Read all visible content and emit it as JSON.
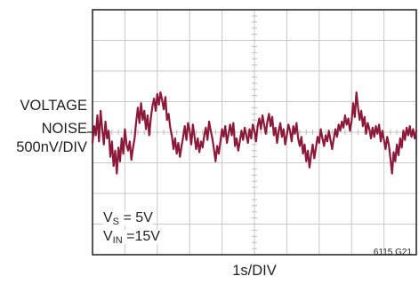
{
  "chart_data": {
    "type": "line",
    "title": "",
    "xlabel": "1s/DIV",
    "ylabel_lines": [
      "VOLTAGE",
      "NOISE",
      "500nV/DIV"
    ],
    "grid": true,
    "divisions": {
      "x": 10,
      "y": 8
    },
    "xlim": [
      0,
      10
    ],
    "ylim": [
      -4,
      4
    ],
    "x_unit": "s (1 per division)",
    "y_unit": "µV (0.5 per division), 0 = center line",
    "conditions": [
      {
        "sym": "V",
        "sub": "S",
        "rest": " = 5V"
      },
      {
        "sym": "V",
        "sub": "IN",
        "rest": " =15V"
      }
    ],
    "figure_id": "6115 G21",
    "trace_color": "#8b1a3a",
    "series": [
      {
        "x": [
          0.0,
          0.05,
          0.1,
          0.15,
          0.2,
          0.25,
          0.3,
          0.35,
          0.4,
          0.45,
          0.5,
          0.55,
          0.6,
          0.65,
          0.7,
          0.75,
          0.8,
          0.85,
          0.9,
          0.95,
          1.0,
          1.05,
          1.1,
          1.15,
          1.2,
          1.25,
          1.3,
          1.35,
          1.4,
          1.45,
          1.5,
          1.55,
          1.6,
          1.65,
          1.7,
          1.75,
          1.8,
          1.85,
          1.9,
          1.95,
          2.0,
          2.05,
          2.1,
          2.15,
          2.2,
          2.25,
          2.3,
          2.35,
          2.4,
          2.45,
          2.5,
          2.55,
          2.6,
          2.65,
          2.7,
          2.75,
          2.8,
          2.85,
          2.9,
          2.95,
          3.0,
          3.05,
          3.1,
          3.15,
          3.2,
          3.25,
          3.3,
          3.35,
          3.4,
          3.45,
          3.5,
          3.55,
          3.6,
          3.65,
          3.7,
          3.75,
          3.8,
          3.85,
          3.9,
          3.95,
          4.0,
          4.05,
          4.1,
          4.15,
          4.2,
          4.25,
          4.3,
          4.35,
          4.4,
          4.45,
          4.5,
          4.55,
          4.6,
          4.65,
          4.7,
          4.75,
          4.8,
          4.85,
          4.9,
          4.95,
          5.0,
          5.05,
          5.1,
          5.15,
          5.2,
          5.25,
          5.3,
          5.35,
          5.4,
          5.45,
          5.5,
          5.55,
          5.6,
          5.65,
          5.7,
          5.75,
          5.8,
          5.85,
          5.9,
          5.95,
          6.0,
          6.05,
          6.1,
          6.15,
          6.2,
          6.25,
          6.3,
          6.35,
          6.4,
          6.45,
          6.5,
          6.55,
          6.6,
          6.65,
          6.7,
          6.75,
          6.8,
          6.85,
          6.9,
          6.95,
          7.0,
          7.05,
          7.1,
          7.15,
          7.2,
          7.25,
          7.3,
          7.35,
          7.4,
          7.45,
          7.5,
          7.55,
          7.6,
          7.65,
          7.7,
          7.75,
          7.8,
          7.85,
          7.9,
          7.95,
          8.0,
          8.05,
          8.1,
          8.15,
          8.2,
          8.25,
          8.3,
          8.35,
          8.4,
          8.45,
          8.5,
          8.55,
          8.6,
          8.65,
          8.7,
          8.75,
          8.8,
          8.85,
          8.9,
          8.95,
          9.0,
          9.05,
          9.1,
          9.15,
          9.2,
          9.25,
          9.3,
          9.35,
          9.4,
          9.45,
          9.5,
          9.55,
          9.6,
          9.65,
          9.7,
          9.75,
          9.8,
          9.85,
          9.9,
          9.95,
          10.0
        ],
        "y": [
          -0.35,
          0.2,
          -0.1,
          0.55,
          -0.3,
          0.7,
          0.1,
          -0.4,
          0.35,
          -0.2,
          0.05,
          -0.8,
          -0.3,
          -1.1,
          -0.6,
          -1.35,
          -0.5,
          -0.95,
          -0.2,
          -0.7,
          0.1,
          -0.4,
          -0.6,
          -0.3,
          -0.9,
          -0.5,
          -0.2,
          0.35,
          0.8,
          0.3,
          0.95,
          0.4,
          0.7,
          0.1,
          0.55,
          -0.1,
          0.45,
          0.85,
          1.1,
          0.7,
          1.25,
          0.9,
          1.3,
          1.05,
          0.75,
          1.15,
          0.4,
          0.6,
          0.15,
          -0.1,
          -0.55,
          -0.2,
          -0.7,
          -0.35,
          -0.8,
          -0.45,
          -0.15,
          0.2,
          -0.25,
          0.3,
          0.05,
          -0.4,
          0.25,
          -0.15,
          -0.55,
          -0.2,
          -0.65,
          -0.3,
          -0.5,
          -0.1,
          0.15,
          -0.25,
          0.35,
          0.05,
          -0.2,
          -0.55,
          -0.95,
          -0.45,
          -0.7,
          -0.3,
          0.1,
          -0.15,
          0.2,
          -0.35,
          -0.05,
          0.25,
          -0.1,
          0.3,
          -0.45,
          -0.2,
          -0.6,
          -0.3,
          0.05,
          -0.25,
          0.15,
          -0.1,
          -0.35,
          0.1,
          -0.2,
          0.25,
          0.05,
          -0.3,
          0.2,
          0.45,
          0.1,
          0.55,
          0.25,
          -0.05,
          0.35,
          0.6,
          0.2,
          0.5,
          -0.1,
          0.15,
          -0.35,
          0.05,
          0.3,
          -0.15,
          0.1,
          -0.4,
          -0.1,
          0.25,
          0.05,
          -0.3,
          0.2,
          -0.05,
          0.3,
          -0.2,
          -0.45,
          -0.15,
          -0.7,
          -0.4,
          -0.95,
          -0.6,
          -1.15,
          -0.75,
          -0.4,
          -0.85,
          -0.5,
          -0.15,
          -0.35,
          0.1,
          -0.2,
          -0.45,
          -0.1,
          -0.3,
          0.05,
          -0.25,
          -0.55,
          -0.2,
          0.1,
          -0.15,
          0.25,
          0.05,
          0.35,
          0.15,
          0.55,
          0.25,
          0.45,
          0.05,
          0.35,
          0.95,
          0.5,
          1.3,
          0.8,
          0.4,
          0.7,
          0.2,
          0.5,
          -0.05,
          0.3,
          0.1,
          -0.2,
          0.15,
          -0.15,
          0.2,
          -0.05,
          0.25,
          -0.3,
          0.05,
          -0.25,
          -0.55,
          -0.15,
          -0.4,
          -0.85,
          -1.35,
          -0.65,
          -0.95,
          -0.4,
          -0.75,
          -0.2,
          -0.5,
          0.05,
          -0.25,
          0.15,
          -0.1,
          0.2,
          -0.15,
          0.1,
          -0.2,
          0.05
        ]
      }
    ]
  }
}
